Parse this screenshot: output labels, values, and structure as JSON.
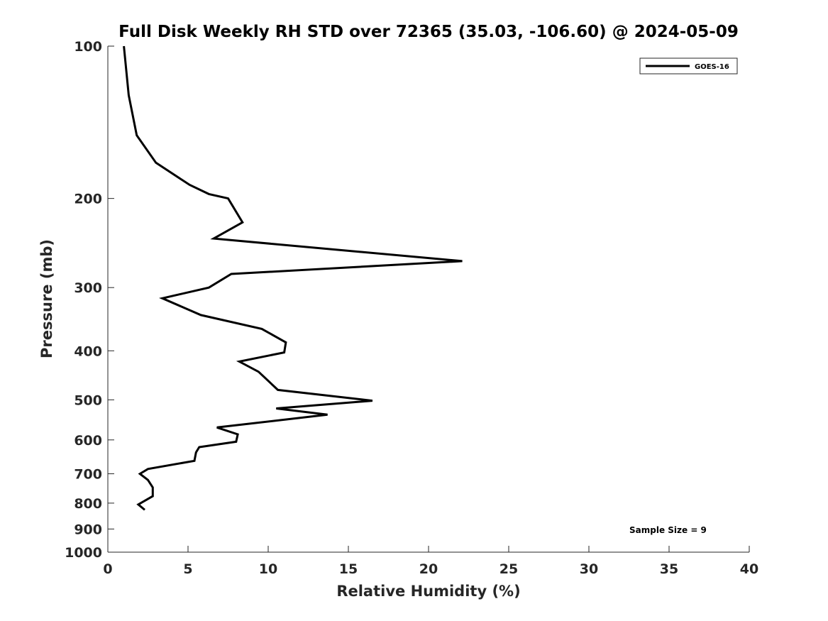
{
  "chart_data": {
    "type": "line",
    "title": "Full Disk Weekly RH STD over 72365 (35.03, -106.60) @ 2024-05-09",
    "xlabel": "Relative Humidity (%)",
    "ylabel": "Pressure (mb)",
    "xlim": [
      0,
      40
    ],
    "ylim": [
      100,
      1000
    ],
    "yscale": "log",
    "y_reversed": true,
    "x_ticks": [
      0,
      5,
      10,
      15,
      20,
      25,
      30,
      35,
      40
    ],
    "y_ticks": [
      100,
      200,
      300,
      400,
      500,
      600,
      700,
      800,
      900,
      1000
    ],
    "grid": false,
    "legend": {
      "placement": "top-right",
      "entries": [
        "GOES-16"
      ]
    },
    "annotations": [
      "Sample Size = 9"
    ],
    "series": [
      {
        "name": "GOES-16",
        "color": "#000000",
        "points": [
          {
            "x": 1.0,
            "y": 100
          },
          {
            "x": 1.3,
            "y": 125
          },
          {
            "x": 1.8,
            "y": 150
          },
          {
            "x": 3.0,
            "y": 170
          },
          {
            "x": 5.1,
            "y": 188
          },
          {
            "x": 6.3,
            "y": 196
          },
          {
            "x": 7.5,
            "y": 200
          },
          {
            "x": 8.4,
            "y": 223
          },
          {
            "x": 6.6,
            "y": 240
          },
          {
            "x": 22.1,
            "y": 266
          },
          {
            "x": 7.7,
            "y": 282
          },
          {
            "x": 6.3,
            "y": 300
          },
          {
            "x": 3.4,
            "y": 315
          },
          {
            "x": 5.8,
            "y": 340
          },
          {
            "x": 9.6,
            "y": 362
          },
          {
            "x": 11.1,
            "y": 385
          },
          {
            "x": 11.0,
            "y": 403
          },
          {
            "x": 8.2,
            "y": 420
          },
          {
            "x": 9.4,
            "y": 440
          },
          {
            "x": 10.6,
            "y": 478
          },
          {
            "x": 16.5,
            "y": 502
          },
          {
            "x": 10.5,
            "y": 520
          },
          {
            "x": 13.7,
            "y": 535
          },
          {
            "x": 6.8,
            "y": 567
          },
          {
            "x": 8.1,
            "y": 585
          },
          {
            "x": 8.0,
            "y": 605
          },
          {
            "x": 5.7,
            "y": 620
          },
          {
            "x": 5.5,
            "y": 635
          },
          {
            "x": 5.4,
            "y": 660
          },
          {
            "x": 2.5,
            "y": 685
          },
          {
            "x": 2.0,
            "y": 700
          },
          {
            "x": 2.5,
            "y": 720
          },
          {
            "x": 2.8,
            "y": 745
          },
          {
            "x": 2.8,
            "y": 775
          },
          {
            "x": 1.9,
            "y": 805
          },
          {
            "x": 2.3,
            "y": 825
          }
        ]
      }
    ]
  }
}
